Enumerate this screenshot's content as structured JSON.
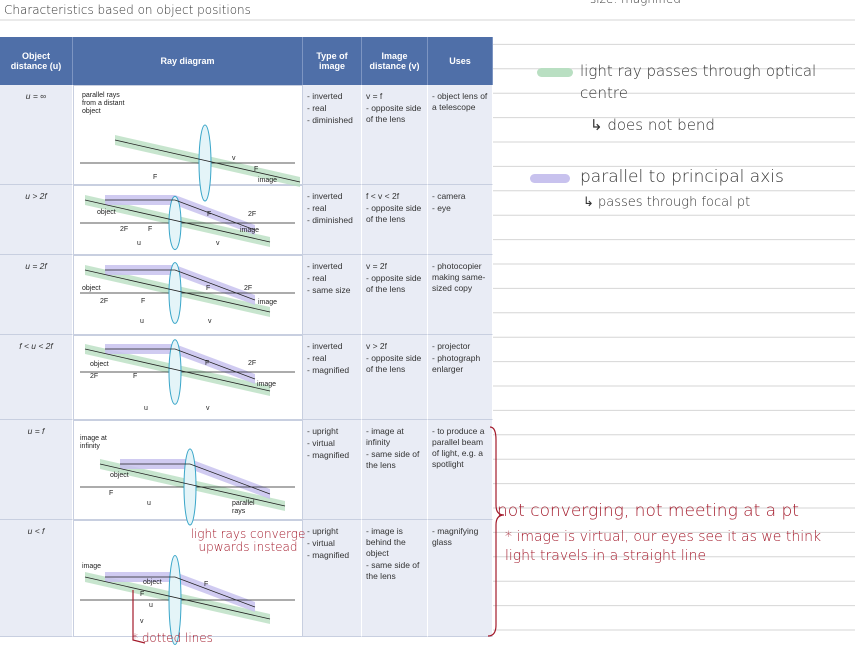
{
  "header": {
    "title": "Characteristics based on object positions",
    "top_right": "size: magnified"
  },
  "table": {
    "columns": [
      "Object distance (u)",
      "Ray diagram",
      "Type of image",
      "Image distance (v)",
      "Uses"
    ],
    "rows": [
      {
        "object_distance": "u = ∞",
        "diagram_labels": [
          "parallel rays from a distant object",
          "F",
          "v",
          "F",
          "image"
        ],
        "type": [
          "- inverted",
          "- real",
          "- diminished"
        ],
        "image_distance": [
          "v = f",
          "- opposite side of the lens"
        ],
        "uses": [
          "- object lens of a telescope"
        ]
      },
      {
        "object_distance": "u > 2f",
        "diagram_labels": [
          "object",
          "2F",
          "F",
          "F",
          "2F",
          "image",
          "u",
          "v"
        ],
        "type": [
          "- inverted",
          "- real",
          "- diminished"
        ],
        "image_distance": [
          "f < v < 2f",
          "- opposite side of the lens"
        ],
        "uses": [
          "- camera",
          "- eye"
        ]
      },
      {
        "object_distance": "u = 2f",
        "diagram_labels": [
          "object",
          "2F",
          "F",
          "F",
          "2F",
          "image",
          "u",
          "v"
        ],
        "type": [
          "- inverted",
          "- real",
          "- same size"
        ],
        "image_distance": [
          "v = 2f",
          "- opposite side of the lens"
        ],
        "uses": [
          "- photocopier making same-sized copy"
        ]
      },
      {
        "object_distance": "f < u < 2f",
        "diagram_labels": [
          "object",
          "2F",
          "F",
          "F",
          "2F",
          "image",
          "u",
          "v"
        ],
        "type": [
          "- inverted",
          "- real",
          "- magnified"
        ],
        "image_distance": [
          "v > 2f",
          "- opposite side of the lens"
        ],
        "uses": [
          "- projector",
          "- photograph enlarger"
        ]
      },
      {
        "object_distance": "u = f",
        "diagram_labels": [
          "image at infinity",
          "object",
          "F",
          "u",
          "parallel rays"
        ],
        "type": [
          "- upright",
          "- virtual",
          "- magnified"
        ],
        "image_distance": [
          "- image at infinity",
          "- same side of the lens"
        ],
        "uses": [
          "- to produce a parallel beam of light, e.g. a spotlight"
        ]
      },
      {
        "object_distance": "u < f",
        "diagram_labels": [
          "image",
          "object",
          "F",
          "F",
          "u",
          "v"
        ],
        "type": [
          "- upright",
          "- virtual",
          "- magnified"
        ],
        "image_distance": [
          "- image is behind the object",
          "- same side of the lens"
        ],
        "uses": [
          "- magnifying glass"
        ]
      }
    ]
  },
  "notes": {
    "green": [
      "light ray passes through optical centre",
      "↳ does not bend"
    ],
    "purple": [
      "parallel to principal axis",
      "↳ passes through focal pt"
    ],
    "converge": "light rays converge upwards instead",
    "bracket": "not converging, not meeting at a pt",
    "virtual": "* image is virtual, our eyes see it as we think light travels in a straight line",
    "dotted": "* dotted lines"
  }
}
